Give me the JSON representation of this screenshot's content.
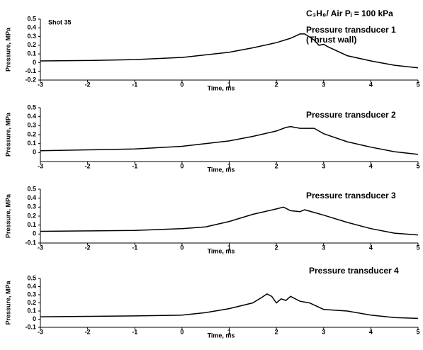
{
  "chart_data": [
    {
      "type": "line",
      "title": "Pressure transducer 1",
      "annotations": [
        "Shot 35",
        "C₃H₈/ Air  Pᵢ = 100 kPa",
        "(Thrust wall)"
      ],
      "xlabel": "Time, ms",
      "ylabel": "Pressure, MPa",
      "color": "#000000",
      "x": [
        -3,
        -2,
        -1,
        0,
        1,
        1.5,
        2,
        2.3,
        2.5,
        2.6,
        2.8,
        2.9,
        3.0,
        3.1,
        3.5,
        4,
        4.5,
        5
      ],
      "values": [
        0.02,
        0.025,
        0.035,
        0.06,
        0.12,
        0.17,
        0.23,
        0.28,
        0.33,
        0.33,
        0.26,
        0.2,
        0.21,
        0.18,
        0.08,
        0.02,
        -0.03,
        -0.06
      ],
      "xlim": [
        -3,
        5
      ],
      "xticks": [
        -3,
        -2,
        -1,
        0,
        1,
        2,
        3,
        4,
        5
      ],
      "ylim": [
        -0.2,
        0.5
      ],
      "yticks": [
        -0.2,
        -0.1,
        0,
        0.1,
        0.2,
        0.3,
        0.4,
        0.5
      ]
    },
    {
      "type": "line",
      "title": "Pressure transducer 2",
      "xlabel": "Time, ms",
      "ylabel": "Pressure, MPa",
      "color": "#000000",
      "x": [
        -3,
        -2,
        -1,
        0,
        1,
        1.5,
        2,
        2.2,
        2.3,
        2.5,
        2.8,
        2.9,
        3,
        3.5,
        4,
        4.5,
        5
      ],
      "values": [
        0.02,
        0.03,
        0.04,
        0.07,
        0.13,
        0.18,
        0.24,
        0.28,
        0.29,
        0.27,
        0.27,
        0.24,
        0.21,
        0.12,
        0.06,
        0.01,
        -0.02
      ],
      "xlim": [
        -3,
        5
      ],
      "xticks": [
        -3,
        -2,
        -1,
        0,
        1,
        2,
        3,
        4,
        5
      ],
      "ylim": [
        -0.1,
        0.5
      ],
      "yticks": [
        0,
        0.1,
        0.2,
        0.3,
        0.4,
        0.5
      ]
    },
    {
      "type": "line",
      "title": "Pressure transducer 3",
      "xlabel": "Time, ms",
      "ylabel": "Pressure, MPa",
      "color": "#000000",
      "x": [
        -3,
        -2,
        -1,
        0,
        0.5,
        1,
        1.5,
        2,
        2.15,
        2.3,
        2.5,
        2.6,
        2.8,
        3,
        3.5,
        4,
        4.5,
        5
      ],
      "values": [
        0.03,
        0.035,
        0.04,
        0.06,
        0.08,
        0.14,
        0.22,
        0.28,
        0.3,
        0.26,
        0.25,
        0.27,
        0.24,
        0.21,
        0.13,
        0.06,
        0.01,
        -0.01
      ],
      "xlim": [
        -3,
        5
      ],
      "xticks": [
        -3,
        -2,
        -1,
        0,
        1,
        2,
        3,
        4,
        5
      ],
      "ylim": [
        -0.1,
        0.5
      ],
      "yticks": [
        -0.1,
        0,
        0.1,
        0.2,
        0.3,
        0.4,
        0.5
      ]
    },
    {
      "type": "line",
      "title": "Pressure transducer 4",
      "xlabel": "Time, ms",
      "ylabel": "Pressure, MPa",
      "color": "#000000",
      "x": [
        -3,
        -2,
        -1,
        0,
        0.5,
        1,
        1.5,
        1.7,
        1.8,
        1.9,
        2,
        2.1,
        2.2,
        2.3,
        2.5,
        2.7,
        3,
        3.5,
        4,
        4.5,
        5
      ],
      "values": [
        0.03,
        0.035,
        0.04,
        0.05,
        0.08,
        0.13,
        0.2,
        0.27,
        0.31,
        0.28,
        0.2,
        0.25,
        0.23,
        0.28,
        0.22,
        0.2,
        0.12,
        0.1,
        0.05,
        0.02,
        0.01
      ],
      "xlim": [
        -3,
        5
      ],
      "xticks": [
        -3,
        -2,
        -1,
        0,
        1,
        2,
        3,
        4,
        5
      ],
      "ylim": [
        -0.1,
        0.5
      ],
      "yticks": [
        -0.1,
        0,
        0.1,
        0.2,
        0.3,
        0.4,
        0.5
      ]
    }
  ]
}
